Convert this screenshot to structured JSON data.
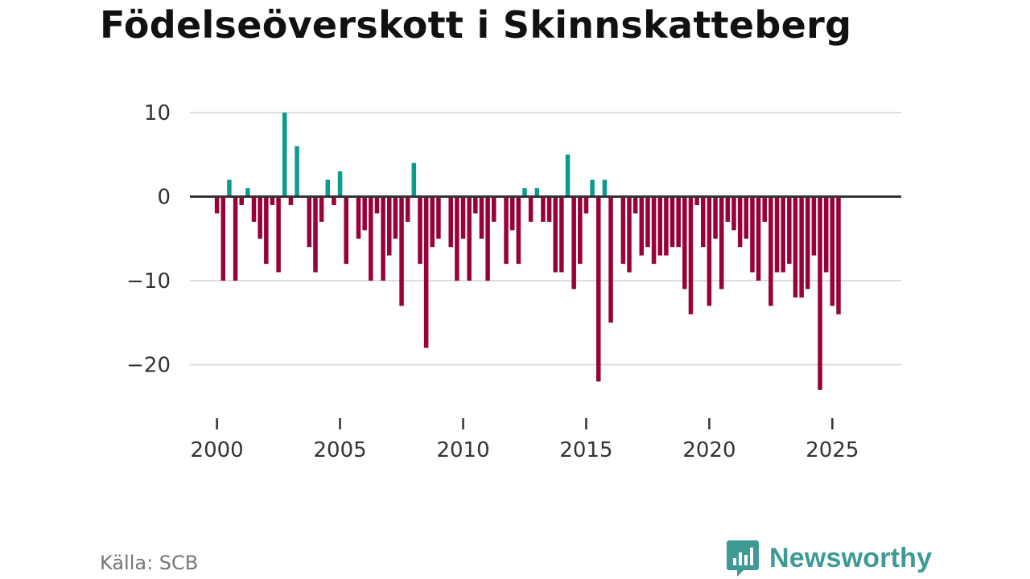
{
  "title": "Födelseöverskott i Skinnskatteberg",
  "source": "Källa: SCB",
  "brand": {
    "name": "Newsworthy",
    "icon": "newsworthy-logo-icon"
  },
  "colors": {
    "positive": "#0a9b8e",
    "negative": "#98003a",
    "zero_line": "#333333",
    "grid": "#dddddd",
    "brand": "#3d9a94"
  },
  "chart_data": {
    "type": "bar",
    "title": "Födelseöverskott i Skinnskatteberg",
    "xlabel": "",
    "ylabel": "",
    "x_start": 2000.0,
    "x_step": 0.25,
    "xlim": [
      1998.9,
      2027.8
    ],
    "ylim": [
      -27,
      12
    ],
    "y_ticks": [
      10,
      0,
      -10,
      -20
    ],
    "y_tick_labels": [
      "10",
      "0",
      "−10",
      "−20"
    ],
    "x_ticks": [
      2000,
      2005,
      2010,
      2015,
      2020,
      2025
    ],
    "x_tick_labels": [
      "2000",
      "2005",
      "2010",
      "2015",
      "2020",
      "2025"
    ],
    "grid": true,
    "values": [
      -2,
      -10,
      2,
      -10,
      -1,
      1,
      -3,
      -5,
      -8,
      -1,
      -9,
      10,
      -1,
      6,
      0,
      -6,
      -9,
      -3,
      2,
      -1,
      3,
      -8,
      0,
      -5,
      -4,
      -10,
      -2,
      -10,
      -7,
      -5,
      -13,
      -3,
      4,
      -8,
      -18,
      -6,
      -5,
      0,
      -6,
      -10,
      -5,
      -10,
      -2,
      -5,
      -10,
      -3,
      0,
      -8,
      -4,
      -8,
      1,
      -3,
      1,
      -3,
      -3,
      -9,
      -9,
      5,
      -11,
      -8,
      -2,
      2,
      -22,
      2,
      -15,
      0,
      -8,
      -9,
      -2,
      -7,
      -6,
      -8,
      -7,
      -7,
      -6,
      -6,
      -11,
      -14,
      -1,
      -6,
      -13,
      -5,
      -11,
      -3,
      -4,
      -6,
      -5,
      -9,
      -10,
      -3,
      -13,
      -9,
      -9,
      -8,
      -12,
      -12,
      -11,
      -7,
      -23,
      -9,
      -13,
      -14
    ]
  }
}
